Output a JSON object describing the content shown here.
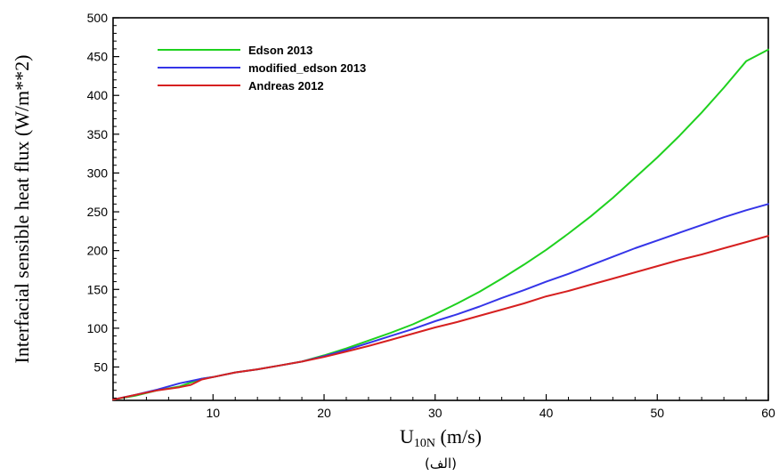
{
  "chart_data": {
    "type": "line",
    "title": "",
    "xlabel_main": "U",
    "xlabel_sub": "10N",
    "xlabel_unit": " (m/s)",
    "ylabel": "Interfacial sensible heat flux (W/m**2)",
    "caption": "(الف)",
    "xlim": [
      1,
      60
    ],
    "ylim": [
      7,
      500
    ],
    "xticks": [
      10,
      20,
      30,
      40,
      50,
      60
    ],
    "yticks": [
      50,
      100,
      150,
      200,
      250,
      300,
      350,
      400,
      450,
      500
    ],
    "grid": false,
    "legend_position": "top-left",
    "series": [
      {
        "name": "Edson 2013",
        "color": "#1fd11f",
        "x": [
          1,
          3,
          5,
          7,
          9,
          10,
          12,
          14,
          16,
          18,
          20,
          22,
          24,
          26,
          28,
          30,
          32,
          34,
          36,
          38,
          40,
          42,
          44,
          46,
          48,
          50,
          52,
          54,
          56,
          58,
          60
        ],
        "y": [
          8,
          13,
          20,
          25,
          35,
          37,
          43,
          47,
          52,
          57,
          65,
          74,
          84,
          94,
          105,
          118,
          132,
          147,
          164,
          182,
          201,
          222,
          244,
          268,
          294,
          320,
          348,
          378,
          410,
          444,
          459
        ]
      },
      {
        "name": "modified_edson 2013",
        "color": "#3535e8",
        "x": [
          1,
          3,
          5,
          7,
          9,
          10,
          12,
          14,
          16,
          18,
          20,
          22,
          24,
          26,
          28,
          30,
          32,
          34,
          36,
          38,
          40,
          42,
          44,
          46,
          48,
          50,
          52,
          54,
          56,
          58,
          60
        ],
        "y": [
          8,
          14,
          21,
          29,
          35,
          37,
          43,
          47,
          52,
          57,
          64,
          72,
          81,
          90,
          99,
          109,
          118,
          128,
          139,
          149,
          160,
          170,
          181,
          192,
          203,
          213,
          223,
          233,
          243,
          252,
          260
        ]
      },
      {
        "name": "Andreas 2012",
        "color": "#d62020",
        "x": [
          1,
          3,
          5,
          7,
          8,
          9,
          10,
          12,
          14,
          16,
          18,
          20,
          22,
          24,
          26,
          28,
          30,
          32,
          34,
          36,
          38,
          40,
          42,
          44,
          46,
          48,
          50,
          52,
          54,
          56,
          58,
          60
        ],
        "y": [
          8,
          14,
          20,
          24,
          27,
          34,
          37,
          43,
          47,
          52,
          57,
          63,
          70,
          77,
          85,
          93,
          101,
          108,
          116,
          124,
          132,
          141,
          148,
          156,
          164,
          172,
          180,
          188,
          195,
          203,
          211,
          219
        ]
      }
    ]
  }
}
